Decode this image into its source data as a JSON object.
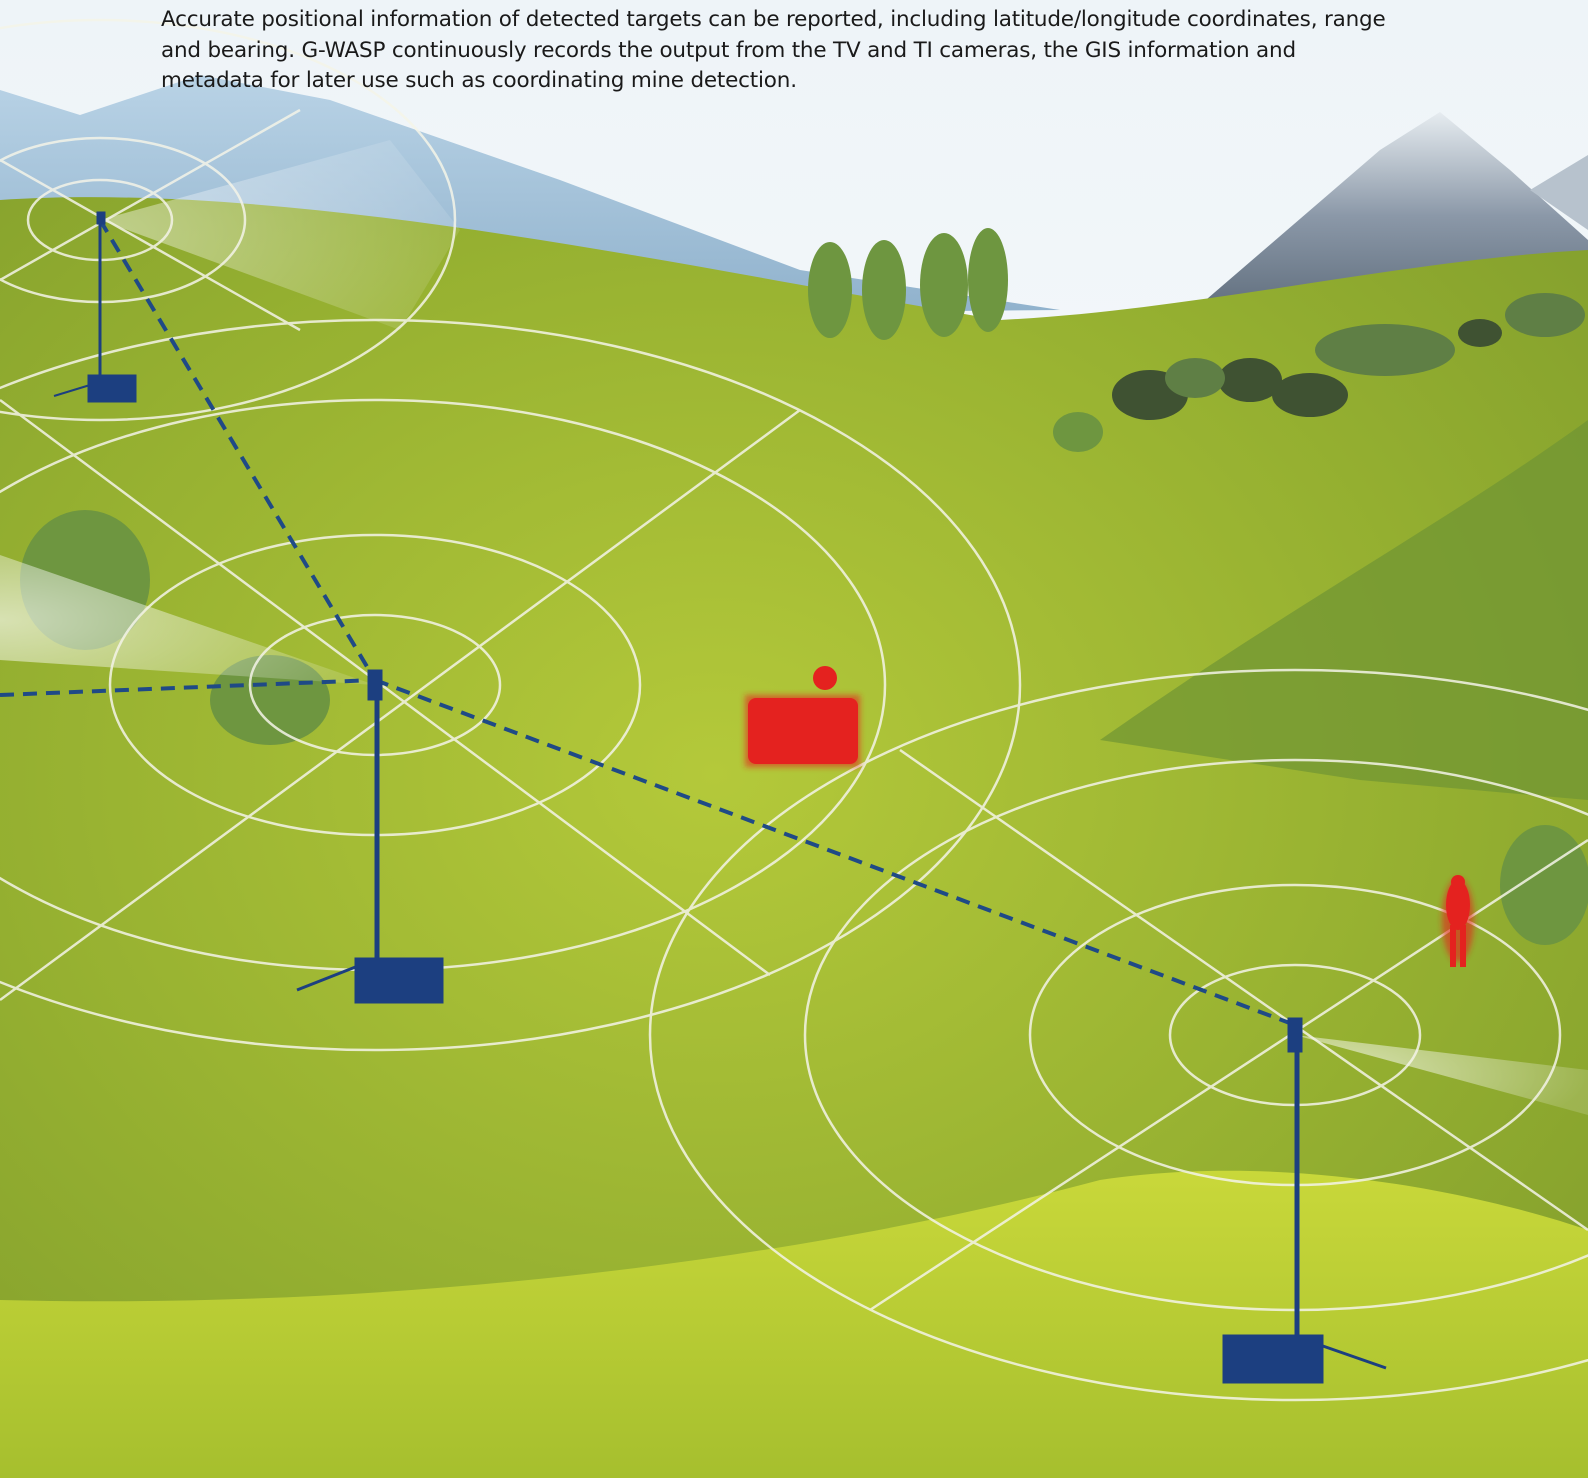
{
  "paragraph_lines": [
    "Accurate positional information of detected targets can be reported, including latitude/longitude coordinates, range",
    "and bearing. G-WASP continuously records the output from the TV and TI cameras, the GIS information and",
    "metadata for later use such as coordinating mine detection."
  ]
}
